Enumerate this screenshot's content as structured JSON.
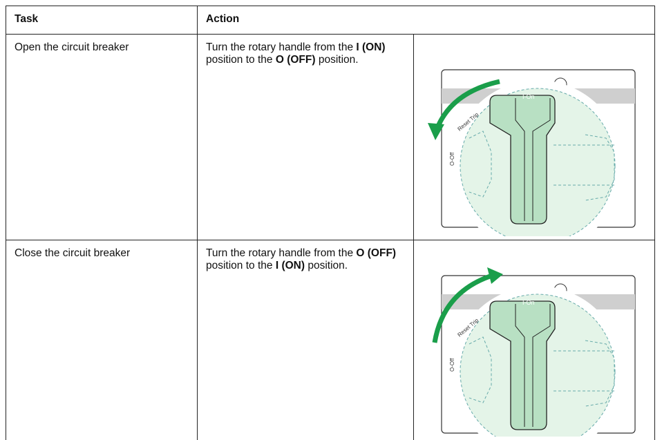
{
  "table": {
    "headers": [
      "Task",
      "Action"
    ],
    "rows": [
      {
        "task": "Open the circuit breaker",
        "action": [
          {
            "text": "Turn the rotary handle from the ",
            "bold": false
          },
          {
            "text": "I (ON)",
            "bold": true
          },
          {
            "text": " position to the ",
            "bold": false
          },
          {
            "text": "O (OFF)",
            "bold": true
          },
          {
            "text": " position.",
            "bold": false
          }
        ],
        "figure": {
          "on_label": "I-On",
          "off_label": "O-Off",
          "reset_label": "Reset Trip"
        }
      },
      {
        "task": "Close the circuit breaker",
        "action": [
          {
            "text": "Turn the rotary handle from the ",
            "bold": false
          },
          {
            "text": "O (OFF)",
            "bold": true
          },
          {
            "text": " position to the ",
            "bold": false
          },
          {
            "text": "I (ON)",
            "bold": true
          },
          {
            "text": " position.",
            "bold": false
          }
        ],
        "figure": {
          "on_label": "I-On",
          "off_label": "O-Off",
          "reset_label": "Reset Trip"
        }
      }
    ]
  }
}
